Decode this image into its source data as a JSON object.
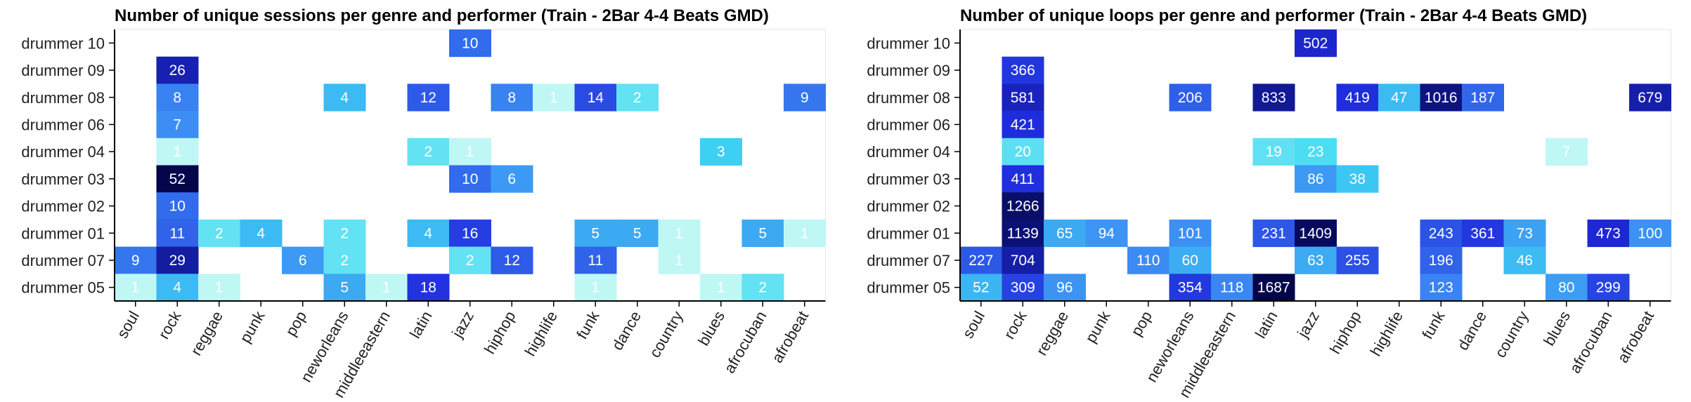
{
  "chart_data": [
    {
      "type": "heatmap",
      "title": "Number of unique sessions per genre and performer (Train - 2Bar 4-4 Beats GMD)",
      "xlabel": "",
      "ylabel": "",
      "x_categories": [
        "soul",
        "rock",
        "reggae",
        "punk",
        "pop",
        "neworleans",
        "middleeastern",
        "latin",
        "jazz",
        "hiphop",
        "highlife",
        "funk",
        "dance",
        "country",
        "blues",
        "afrocuban",
        "afrobeat"
      ],
      "y_categories": [
        "drummer 10",
        "drummer 09",
        "drummer 08",
        "drummer 06",
        "drummer 04",
        "drummer 03",
        "drummer 02",
        "drummer 01",
        "drummer 07",
        "drummer 05"
      ],
      "values": [
        [
          null,
          null,
          null,
          null,
          null,
          null,
          null,
          null,
          10,
          null,
          null,
          null,
          null,
          null,
          null,
          null,
          null
        ],
        [
          null,
          26,
          null,
          null,
          null,
          null,
          null,
          null,
          null,
          null,
          null,
          null,
          null,
          null,
          null,
          null,
          null
        ],
        [
          null,
          8,
          null,
          null,
          null,
          4,
          null,
          12,
          null,
          8,
          1,
          14,
          2,
          null,
          null,
          null,
          9
        ],
        [
          null,
          7,
          null,
          null,
          null,
          null,
          null,
          null,
          null,
          null,
          null,
          null,
          null,
          null,
          null,
          null,
          null
        ],
        [
          null,
          1,
          null,
          null,
          null,
          null,
          null,
          2,
          1,
          null,
          null,
          null,
          null,
          null,
          3,
          null,
          null
        ],
        [
          null,
          52,
          null,
          null,
          null,
          null,
          null,
          null,
          10,
          6,
          null,
          null,
          null,
          null,
          null,
          null,
          null
        ],
        [
          null,
          10,
          null,
          null,
          null,
          null,
          null,
          null,
          null,
          null,
          null,
          null,
          null,
          null,
          null,
          null,
          null
        ],
        [
          null,
          11,
          2,
          4,
          null,
          2,
          null,
          4,
          16,
          null,
          null,
          5,
          5,
          1,
          null,
          5,
          1
        ],
        [
          9,
          29,
          null,
          null,
          6,
          2,
          null,
          null,
          2,
          12,
          null,
          11,
          null,
          1,
          null,
          null,
          null
        ],
        [
          1,
          4,
          1,
          null,
          null,
          5,
          1,
          18,
          null,
          null,
          null,
          1,
          null,
          null,
          1,
          2,
          null
        ]
      ],
      "vmin": 1,
      "vmax": 52,
      "colormap": [
        "#bff7f5",
        "#3cd9f2",
        "#3c8cf4",
        "#1f2bdc",
        "#03064a"
      ]
    },
    {
      "type": "heatmap",
      "title": "Number of unique loops per genre and performer (Train - 2Bar 4-4 Beats GMD)",
      "xlabel": "",
      "ylabel": "",
      "x_categories": [
        "soul",
        "rock",
        "reggae",
        "punk",
        "pop",
        "neworleans",
        "middleeastern",
        "latin",
        "jazz",
        "hiphop",
        "highlife",
        "funk",
        "dance",
        "country",
        "blues",
        "afrocuban",
        "afrobeat"
      ],
      "y_categories": [
        "drummer 10",
        "drummer 09",
        "drummer 08",
        "drummer 06",
        "drummer 04",
        "drummer 03",
        "drummer 02",
        "drummer 01",
        "drummer 07",
        "drummer 05"
      ],
      "values": [
        [
          null,
          null,
          null,
          null,
          null,
          null,
          null,
          null,
          502,
          null,
          null,
          null,
          null,
          null,
          null,
          null,
          null
        ],
        [
          null,
          366,
          null,
          null,
          null,
          null,
          null,
          null,
          null,
          null,
          null,
          null,
          null,
          null,
          null,
          null,
          null
        ],
        [
          null,
          581,
          null,
          null,
          null,
          206,
          null,
          833,
          null,
          419,
          47,
          1016,
          187,
          null,
          null,
          null,
          679
        ],
        [
          null,
          421,
          null,
          null,
          null,
          null,
          null,
          null,
          null,
          null,
          null,
          null,
          null,
          null,
          null,
          null,
          null
        ],
        [
          null,
          20,
          null,
          null,
          null,
          null,
          null,
          19,
          23,
          null,
          null,
          null,
          null,
          null,
          7,
          null,
          null
        ],
        [
          null,
          411,
          null,
          null,
          null,
          null,
          null,
          null,
          86,
          38,
          null,
          null,
          null,
          null,
          null,
          null,
          null
        ],
        [
          null,
          1266,
          null,
          null,
          null,
          null,
          null,
          null,
          null,
          null,
          null,
          null,
          null,
          null,
          null,
          null,
          null
        ],
        [
          null,
          1139,
          65,
          94,
          null,
          101,
          null,
          231,
          1409,
          null,
          null,
          243,
          361,
          73,
          null,
          473,
          100
        ],
        [
          227,
          704,
          null,
          null,
          110,
          60,
          null,
          null,
          63,
          255,
          null,
          196,
          null,
          46,
          null,
          null,
          null
        ],
        [
          52,
          309,
          96,
          null,
          null,
          354,
          118,
          1687,
          null,
          null,
          null,
          123,
          null,
          null,
          80,
          299,
          null
        ]
      ],
      "vmin": 7,
      "vmax": 1687,
      "colormap": [
        "#bff7f5",
        "#3cd9f2",
        "#3c8cf4",
        "#1f2bdc",
        "#03064a"
      ]
    }
  ]
}
